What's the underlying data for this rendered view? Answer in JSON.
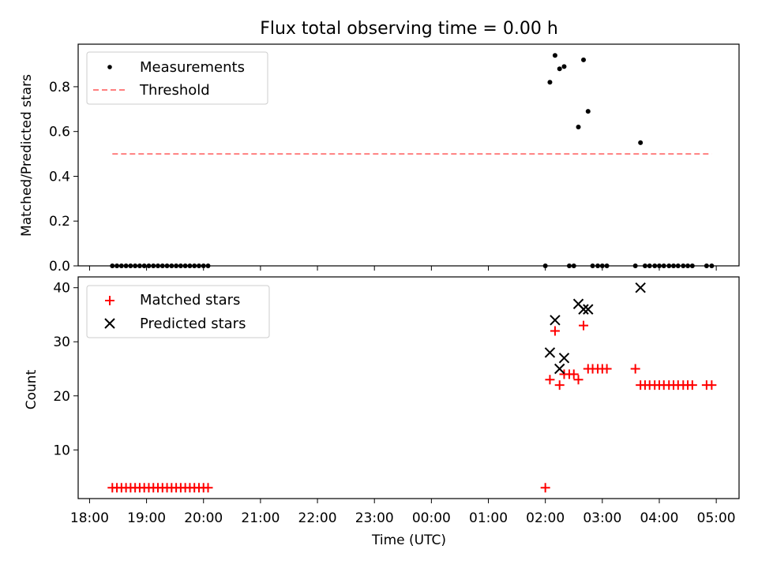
{
  "title": "Flux total observing time = 0.00 h",
  "colors": {
    "measurement": "#000000",
    "threshold": "#ff7f7f",
    "matched": "#ff0000",
    "predicted": "#000000"
  },
  "chart_data": [
    {
      "type": "scatter",
      "name": "ratio",
      "title": "Flux total observing time = 0.00 h",
      "xlabel": "",
      "ylabel": "Matched/Predicted stars",
      "xlim": [
        17.8,
        29.4
      ],
      "ylim": [
        0,
        0.99
      ],
      "yticks": [
        0.0,
        0.2,
        0.4,
        0.6,
        0.8
      ],
      "ytick_labels": [
        "0.0",
        "0.2",
        "0.4",
        "0.6",
        "0.8"
      ],
      "legend_position": "upper-left",
      "legend": [
        "Measurements",
        "Threshold"
      ],
      "series": [
        {
          "name": "Measurements",
          "marker": "dot",
          "points": [
            [
              18.4,
              0
            ],
            [
              18.48,
              0
            ],
            [
              18.56,
              0
            ],
            [
              18.64,
              0
            ],
            [
              18.72,
              0
            ],
            [
              18.8,
              0
            ],
            [
              18.88,
              0
            ],
            [
              18.96,
              0
            ],
            [
              19.04,
              0
            ],
            [
              19.12,
              0
            ],
            [
              19.2,
              0
            ],
            [
              19.28,
              0
            ],
            [
              19.36,
              0
            ],
            [
              19.44,
              0
            ],
            [
              19.52,
              0
            ],
            [
              19.6,
              0
            ],
            [
              19.68,
              0
            ],
            [
              19.76,
              0
            ],
            [
              19.84,
              0
            ],
            [
              19.92,
              0
            ],
            [
              20.0,
              0
            ],
            [
              20.08,
              0
            ],
            [
              26.0,
              0
            ],
            [
              26.08,
              0.82
            ],
            [
              26.17,
              0.94
            ],
            [
              26.25,
              0.88
            ],
            [
              26.33,
              0.89
            ],
            [
              26.42,
              0
            ],
            [
              26.5,
              0
            ],
            [
              26.58,
              0.62
            ],
            [
              26.67,
              0.92
            ],
            [
              26.75,
              0.69
            ],
            [
              26.83,
              0
            ],
            [
              26.92,
              0
            ],
            [
              27.0,
              0
            ],
            [
              27.08,
              0
            ],
            [
              27.58,
              0
            ],
            [
              27.67,
              0.55
            ],
            [
              27.75,
              0
            ],
            [
              27.83,
              0
            ],
            [
              27.92,
              0
            ],
            [
              28.0,
              0
            ],
            [
              28.08,
              0
            ],
            [
              28.17,
              0
            ],
            [
              28.25,
              0
            ],
            [
              28.33,
              0
            ],
            [
              28.42,
              0
            ],
            [
              28.5,
              0
            ],
            [
              28.58,
              0
            ],
            [
              28.83,
              0
            ],
            [
              28.92,
              0
            ]
          ]
        },
        {
          "name": "Threshold",
          "style": "dashed",
          "x": [
            18.4,
            28.92
          ],
          "y": [
            0.5,
            0.5
          ]
        }
      ]
    },
    {
      "type": "scatter",
      "name": "count",
      "xlabel": "Time (UTC)",
      "ylabel": "Count",
      "xlim": [
        17.8,
        29.4
      ],
      "ylim": [
        1,
        42
      ],
      "yticks": [
        10,
        20,
        30,
        40
      ],
      "ytick_labels": [
        "10",
        "20",
        "30",
        "40"
      ],
      "xticks": [
        18,
        19,
        20,
        21,
        22,
        23,
        24,
        25,
        26,
        27,
        28,
        29
      ],
      "xtick_labels": [
        "18:00",
        "19:00",
        "20:00",
        "21:00",
        "22:00",
        "23:00",
        "00:00",
        "01:00",
        "02:00",
        "03:00",
        "04:00",
        "05:00"
      ],
      "legend_position": "upper-left",
      "legend": [
        "Matched stars",
        "Predicted stars"
      ],
      "series": [
        {
          "name": "Matched stars",
          "marker": "plus",
          "points": [
            [
              18.4,
              3
            ],
            [
              18.48,
              3
            ],
            [
              18.56,
              3
            ],
            [
              18.64,
              3
            ],
            [
              18.72,
              3
            ],
            [
              18.8,
              3
            ],
            [
              18.88,
              3
            ],
            [
              18.96,
              3
            ],
            [
              19.04,
              3
            ],
            [
              19.12,
              3
            ],
            [
              19.2,
              3
            ],
            [
              19.28,
              3
            ],
            [
              19.36,
              3
            ],
            [
              19.44,
              3
            ],
            [
              19.52,
              3
            ],
            [
              19.6,
              3
            ],
            [
              19.68,
              3
            ],
            [
              19.76,
              3
            ],
            [
              19.84,
              3
            ],
            [
              19.92,
              3
            ],
            [
              20.0,
              3
            ],
            [
              20.08,
              3
            ],
            [
              26.0,
              3
            ],
            [
              26.08,
              23
            ],
            [
              26.17,
              32
            ],
            [
              26.25,
              22
            ],
            [
              26.33,
              24
            ],
            [
              26.42,
              24
            ],
            [
              26.5,
              24
            ],
            [
              26.58,
              23
            ],
            [
              26.67,
              33
            ],
            [
              26.75,
              25
            ],
            [
              26.83,
              25
            ],
            [
              26.92,
              25
            ],
            [
              27.0,
              25
            ],
            [
              27.08,
              25
            ],
            [
              27.58,
              25
            ],
            [
              27.67,
              22
            ],
            [
              27.75,
              22
            ],
            [
              27.83,
              22
            ],
            [
              27.92,
              22
            ],
            [
              28.0,
              22
            ],
            [
              28.08,
              22
            ],
            [
              28.17,
              22
            ],
            [
              28.25,
              22
            ],
            [
              28.33,
              22
            ],
            [
              28.42,
              22
            ],
            [
              28.5,
              22
            ],
            [
              28.58,
              22
            ],
            [
              28.83,
              22
            ],
            [
              28.92,
              22
            ]
          ]
        },
        {
          "name": "Predicted stars",
          "marker": "x",
          "points": [
            [
              26.08,
              28
            ],
            [
              26.17,
              34
            ],
            [
              26.25,
              25
            ],
            [
              26.33,
              27
            ],
            [
              26.58,
              37
            ],
            [
              26.67,
              36
            ],
            [
              26.75,
              36
            ],
            [
              27.67,
              40
            ]
          ]
        }
      ]
    }
  ]
}
